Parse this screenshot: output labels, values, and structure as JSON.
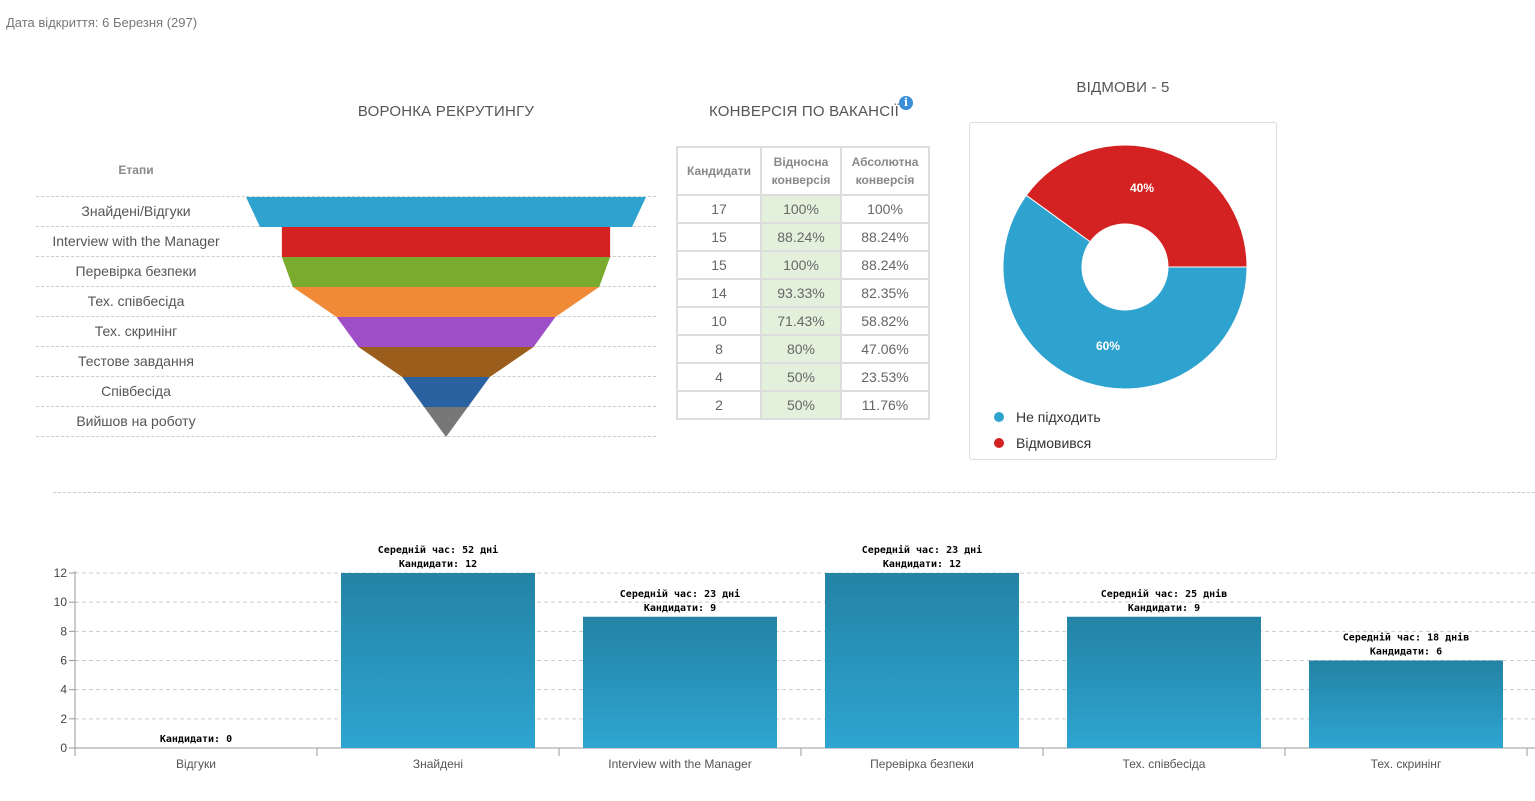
{
  "header": {
    "opened_text": "Дата відкриття: 6 Березня (297)"
  },
  "funnel": {
    "title": "ВОРОНКА РЕКРУТИНГУ",
    "stages_header": "Етапи",
    "stages": [
      {
        "label": "Знайдені/Відгуки",
        "candidates": 17,
        "color": "#2ea3cf"
      },
      {
        "label": "Interview with the Manager",
        "candidates": 15,
        "color": "#d42121"
      },
      {
        "label": "Перевірка безпеки",
        "candidates": 15,
        "color": "#7aab2e"
      },
      {
        "label": "Тех. співбесіда",
        "candidates": 14,
        "color": "#f18a36"
      },
      {
        "label": "Тех. скринінг",
        "candidates": 10,
        "color": "#9e4fc8"
      },
      {
        "label": "Тестове завдання",
        "candidates": 8,
        "color": "#9b5d1c"
      },
      {
        "label": "Співбесіда",
        "candidates": 4,
        "color": "#2a62a1"
      },
      {
        "label": "Вийшов на роботу",
        "candidates": 2,
        "color": "#777777"
      }
    ]
  },
  "conversion": {
    "title": "КОНВЕРСІЯ ПО ВАКАНСІЇ",
    "info_icon": "info-icon",
    "headers": [
      "Кандидати",
      "Відносна конверсія",
      "Абсолютна конверсія"
    ],
    "rows": [
      [
        "17",
        "100%",
        "100%"
      ],
      [
        "15",
        "88.24%",
        "88.24%"
      ],
      [
        "15",
        "100%",
        "88.24%"
      ],
      [
        "14",
        "93.33%",
        "82.35%"
      ],
      [
        "10",
        "71.43%",
        "58.82%"
      ],
      [
        "8",
        "80%",
        "47.06%"
      ],
      [
        "4",
        "50%",
        "23.53%"
      ],
      [
        "2",
        "50%",
        "11.76%"
      ]
    ]
  },
  "rejections": {
    "title": "ВІДМОВИ - 5",
    "chart_data": {
      "type": "pie",
      "title": "ВІДМОВИ - 5",
      "donut": true,
      "slices": [
        {
          "name": "Не підходить",
          "value": 60,
          "label": "60%",
          "color": "#2ea3cf"
        },
        {
          "name": "Відмовився",
          "value": 40,
          "label": "40%",
          "color": "#d42121"
        }
      ],
      "legend_position": "bottom-left"
    }
  },
  "chart_data": {
    "type": "bar",
    "categories": [
      "Відгуки",
      "Знайдені",
      "Interview with the Manager",
      "Перевірка безпеки",
      "Тех. співбесіда",
      "Тех. скринінг"
    ],
    "values": [
      0,
      12,
      9,
      12,
      9,
      6
    ],
    "data_labels": [
      [
        "Кандидати: 0"
      ],
      [
        "Середній час: 52 дні",
        "Кандидати: 12"
      ],
      [
        "Середній час: 23 дні",
        "Кандидати: 9"
      ],
      [
        "Середній час: 23 дні",
        "Кандидати: 12"
      ],
      [
        "Середній час: 25 днів",
        "Кандидати: 9"
      ],
      [
        "Середній час: 18 днів",
        "Кандидати: 6"
      ]
    ],
    "y_ticks": [
      0,
      2,
      4,
      6,
      8,
      10,
      12
    ],
    "ylim": [
      0,
      12
    ],
    "grid": true,
    "bar_color_top": "#2383a5",
    "bar_color_bottom": "#2ea5d1"
  }
}
